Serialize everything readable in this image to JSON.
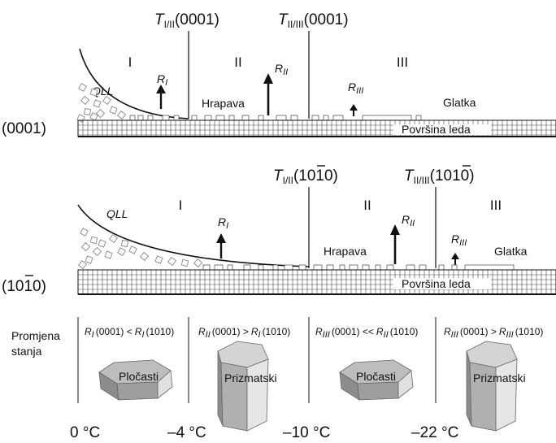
{
  "top_panel": {
    "boundary_labels": [
      {
        "symbol": "T",
        "sub": "I/II",
        "face": "(0001)"
      },
      {
        "symbol": "T",
        "sub": "II/III",
        "face": "(0001)"
      }
    ],
    "regimes": [
      "I",
      "II",
      "III"
    ],
    "qll": "QLL",
    "growth_rates": [
      {
        "symbol": "R",
        "sub": "I"
      },
      {
        "symbol": "R",
        "sub": "II"
      },
      {
        "symbol": "R",
        "sub": "III"
      }
    ],
    "rough_label": "Hrapava",
    "smooth_label": "Glatka",
    "surface_label": "Površina leda",
    "row_label": "(0001)"
  },
  "bottom_panel": {
    "boundary_labels": [
      {
        "symbol": "T",
        "sub": "I/II",
        "face": "(1010)"
      },
      {
        "symbol": "T",
        "sub": "II/III",
        "face": "(1010)"
      }
    ],
    "regimes": [
      "I",
      "II",
      "III"
    ],
    "qll": "QLL",
    "growth_rates": [
      {
        "symbol": "R",
        "sub": "I"
      },
      {
        "symbol": "R",
        "sub": "II"
      },
      {
        "symbol": "R",
        "sub": "III"
      }
    ],
    "rough_label": "Hrapava",
    "smooth_label": "Glatka",
    "surface_label": "Površina leda",
    "row_label": "(1010)"
  },
  "habit_row": {
    "row_label_line1": "Promjena",
    "row_label_line2": "stanja",
    "conditions": [
      {
        "a": "R",
        "asub": "I",
        "mid": "(0001) <",
        "b": "R",
        "bsub": "I",
        "end": "(1010)"
      },
      {
        "a": "R",
        "asub": "II",
        "mid": "(0001) >",
        "b": "R",
        "bsub": "I",
        "end": "(1010)"
      },
      {
        "a": "R",
        "asub": "III",
        "mid": "(0001) <<",
        "b": "R",
        "bsub": "II",
        "end": "(1010)"
      },
      {
        "a": "R",
        "asub": "III",
        "mid": "(0001) >",
        "b": "R",
        "bsub": "III",
        "end": "(1010)"
      }
    ],
    "habits": [
      "Pločasti",
      "Prizmatski",
      "Pločasti",
      "Prizmatski"
    ]
  },
  "temperatures": [
    "0 °C",
    "–4 °C",
    "–10 °C",
    "–22 °C"
  ],
  "colors": {
    "line": "#111111",
    "grid": "#444444",
    "crystal_top": "#bdbdbd",
    "crystal_side": "#8c8c8c",
    "crystal_light": "#e0e0e0",
    "droplet": "#888888"
  }
}
